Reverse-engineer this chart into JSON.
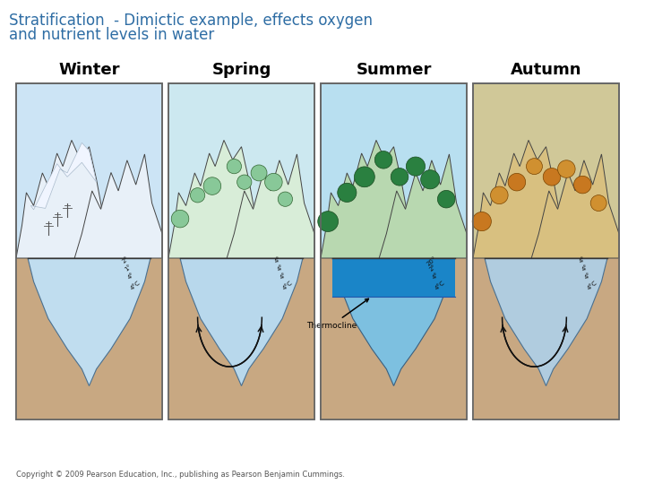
{
  "title_line1": "Stratification  - Dimictic example, effects oxygen",
  "title_line2": "and nutrient levels in water",
  "title_color": "#2e6da4",
  "title_fontsize": 12,
  "seasons": [
    "Winter",
    "Spring",
    "Summer",
    "Autumn"
  ],
  "season_fontsize": 13,
  "copyright_text": "Copyright © 2009 Pearson Education, Inc., publishing as Pearson Benjamin Cummings.",
  "copyright_fontsize": 6,
  "bg_color": "#ffffff",
  "panel_border_color": "#666666",
  "sand_color": "#c8a882",
  "water_winter": "#c0ddef",
  "water_spring": "#b8d8ec",
  "water_summer_top": "#1a85c8",
  "water_summer_bottom": "#7dc0e0",
  "water_autumn": "#b0ccdf",
  "sky_winter": "#cce4f5",
  "sky_spring": "#cce8f0",
  "sky_summer": "#b8dff0",
  "sky_autumn": "#d0c898",
  "snow_color": "#f5f8ff",
  "mtn_bg_winter": "#e8f0f8",
  "mtn_bg_spring": "#d8edd8",
  "mtn_bg_summer": "#b8d8b0",
  "mtn_bg_autumn": "#d8c080",
  "tree_spring": "#88c898",
  "tree_summer": "#2a8040",
  "tree_autumn_left": "#c87820",
  "tree_autumn_right": "#d09030",
  "arrow_color": "#111111",
  "temp_color": "#111111"
}
